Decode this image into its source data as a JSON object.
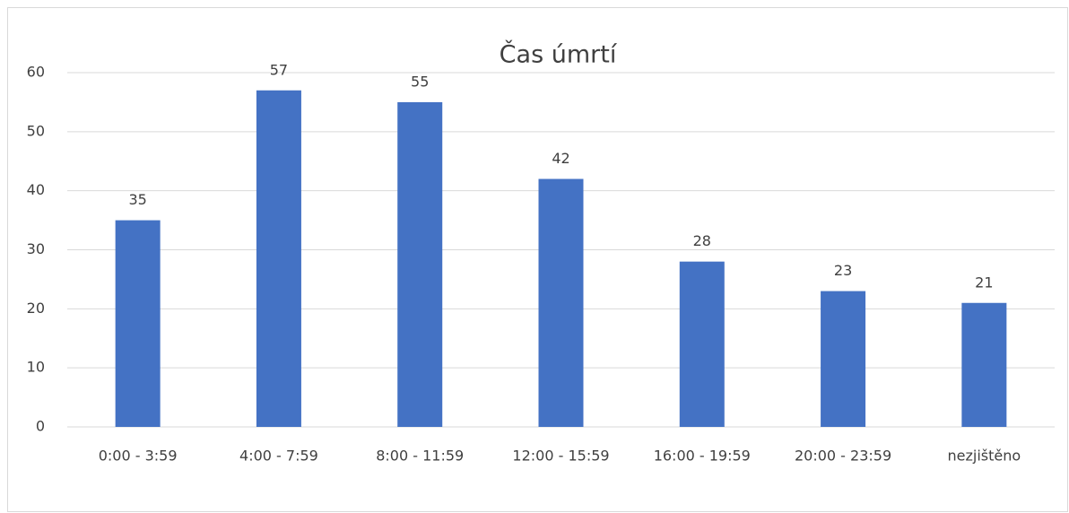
{
  "chart_data": {
    "type": "bar",
    "title": "Čas úmrtí",
    "categories": [
      "0:00 - 3:59",
      "4:00 - 7:59",
      "8:00 - 11:59",
      "12:00 - 15:59",
      "16:00 - 19:59",
      "20:00 - 23:59",
      "nezjištěno"
    ],
    "values": [
      35,
      57,
      55,
      42,
      28,
      23,
      21
    ],
    "color": "#4472c4",
    "ylim": [
      0,
      60
    ],
    "yticks": [
      0,
      10,
      20,
      30,
      40,
      50,
      60
    ],
    "grid": true
  }
}
